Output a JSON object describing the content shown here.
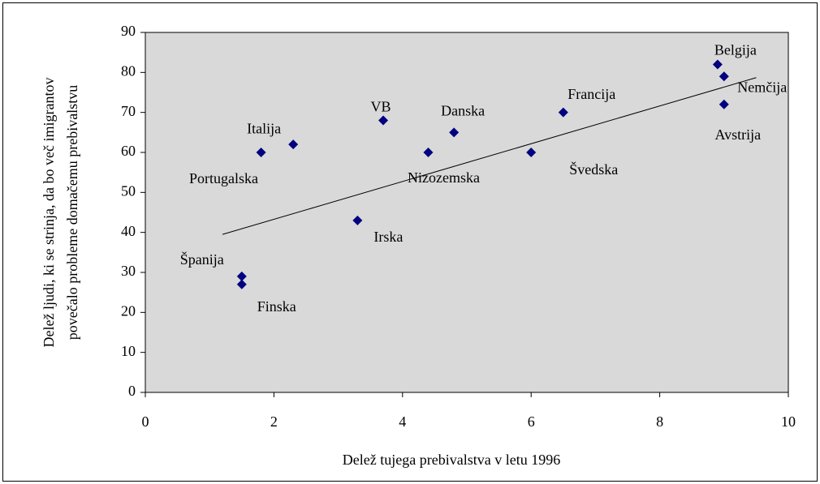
{
  "chart_data": {
    "type": "scatter",
    "x_label": "Delež tujega prebivalstva v letu 1996",
    "y_label": [
      "Delež ljudi, ki se strinja, da bo več imigrantov",
      "povečalo probleme domačemu prebivalstvu"
    ],
    "labels": [
      "Belgija",
      "Nemčija",
      "Avstrija",
      "Francija",
      "Švedska",
      "Danska",
      "Nizozemska",
      "VB",
      "Italija",
      "Portugalska",
      "Irska",
      "Španija",
      "Finska"
    ],
    "x": [
      8.9,
      9.0,
      9.0,
      6.5,
      6.0,
      4.8,
      4.4,
      3.7,
      2.3,
      1.8,
      3.3,
      1.5,
      1.5
    ],
    "values": [
      82,
      79,
      72,
      70,
      60,
      65,
      60,
      68,
      62,
      60,
      43,
      29,
      27
    ],
    "color": "#000080",
    "trendline": {
      "x": [
        1.2,
        9.5
      ],
      "y": [
        39.5,
        78.7
      ]
    },
    "xlim": [
      0,
      10
    ],
    "xticks": [
      0,
      2,
      4,
      6,
      8,
      10
    ],
    "ylim": [
      0,
      90
    ],
    "yticks": [
      0,
      10,
      20,
      30,
      40,
      50,
      60,
      70,
      80,
      90
    ]
  }
}
